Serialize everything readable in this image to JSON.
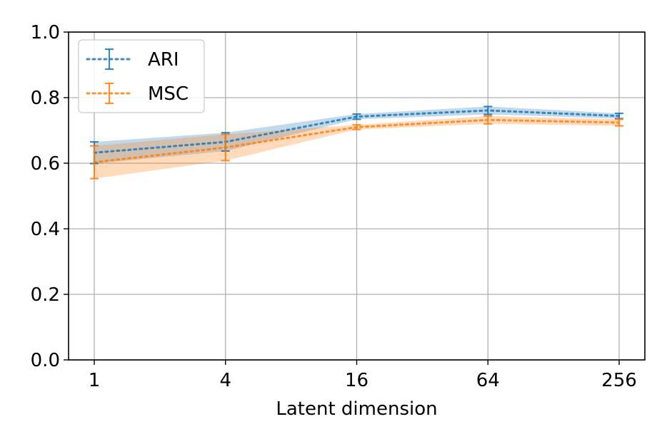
{
  "chart_data": {
    "type": "line",
    "title": "",
    "xlabel": "Latent dimension",
    "ylabel": "",
    "x": [
      "1",
      "4",
      "16",
      "64",
      "256"
    ],
    "xscale": "log4",
    "ylim": [
      0.0,
      1.0
    ],
    "yticks": [
      "0.0",
      "0.2",
      "0.4",
      "0.6",
      "0.8",
      "1.0"
    ],
    "grid": true,
    "legend_position": "top-left",
    "series": [
      {
        "name": "ARI",
        "color": "#1f77b4",
        "linestyle": "dotted",
        "values": [
          0.632,
          0.665,
          0.742,
          0.761,
          0.744
        ],
        "errors": [
          0.033,
          0.028,
          0.008,
          0.012,
          0.008
        ]
      },
      {
        "name": "MSC",
        "color": "#ff7f0e",
        "linestyle": "dotted",
        "values": [
          0.603,
          0.648,
          0.71,
          0.732,
          0.724
        ],
        "errors": [
          0.05,
          0.04,
          0.007,
          0.012,
          0.01
        ]
      }
    ]
  }
}
